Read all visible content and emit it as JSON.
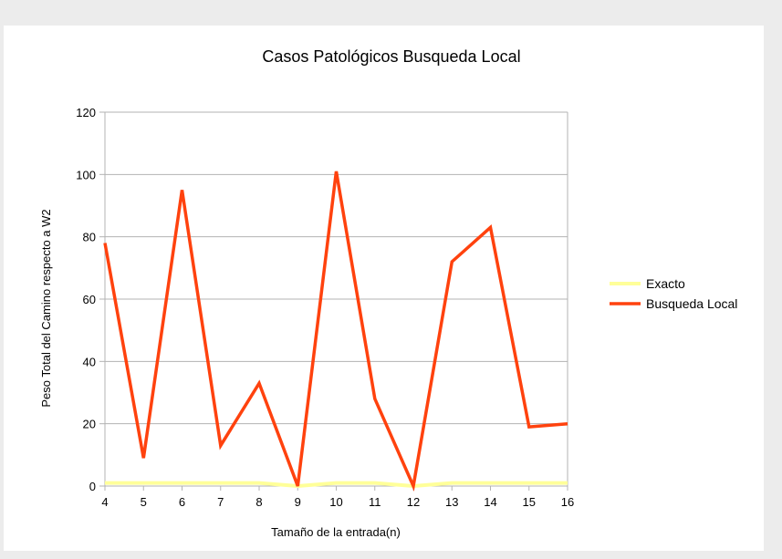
{
  "chart_data": {
    "type": "line",
    "title": "Casos Patológicos Busqueda Local",
    "xlabel": "Tamaño de la entrada(n)",
    "ylabel": "Peso Total del Camino respecto a W2",
    "categories": [
      "4",
      "5",
      "6",
      "7",
      "8",
      "9",
      "10",
      "11",
      "12",
      "13",
      "14",
      "15",
      "16"
    ],
    "ylim": [
      0,
      120
    ],
    "yticks": [
      "0",
      "20",
      "40",
      "60",
      "80",
      "100",
      "120"
    ],
    "grid": true,
    "legend_position": "right",
    "series": [
      {
        "name": "Exacto",
        "color": "#ffff99",
        "values": [
          1,
          1,
          1,
          1,
          1,
          0,
          1,
          1,
          0,
          1,
          1,
          1,
          1
        ]
      },
      {
        "name": "Busqueda Local",
        "color": "#ff420e",
        "values": [
          78,
          9,
          95,
          13,
          33,
          0,
          101,
          28,
          0,
          72,
          83,
          19,
          20
        ]
      }
    ]
  }
}
